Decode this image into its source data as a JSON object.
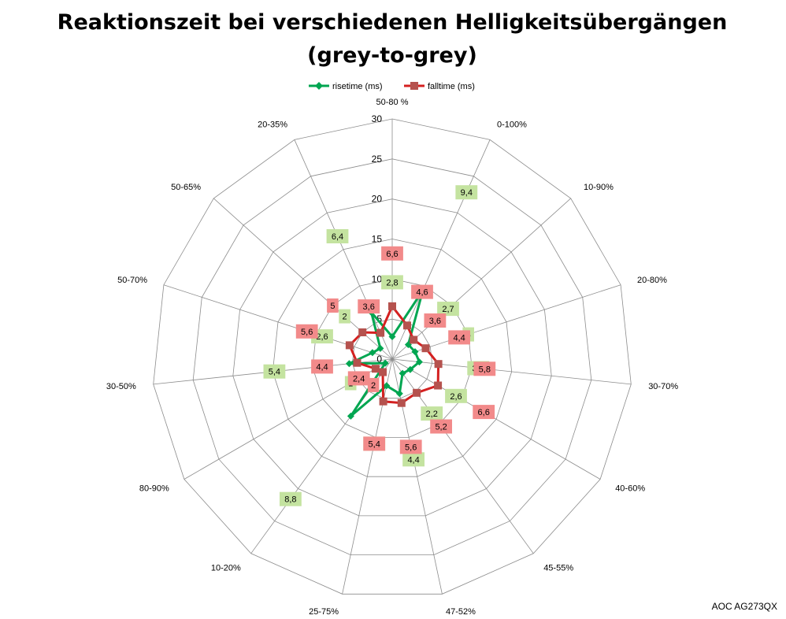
{
  "chart_data": {
    "type": "radar",
    "title_lines": [
      "Reaktionszeit bei verschiedenen Helligkeitsübergängen",
      "(grey-to-grey)"
    ],
    "categories": [
      "50-80 %",
      "0-100%",
      "10-90%",
      "20-80%",
      "30-70%",
      "40-60%",
      "45-55%",
      "47-52%",
      "25-75%",
      "10-20%",
      "80-90%",
      "30-50%",
      "50-70%",
      "50-65%",
      "20-35%"
    ],
    "axis": {
      "min": 0,
      "max": 30,
      "step": 5,
      "ticks": [
        "0",
        "5",
        "10",
        "15",
        "20",
        "25",
        "30"
      ]
    },
    "grid": true,
    "legend_position": "top",
    "series": [
      {
        "name": "risetime (ms)",
        "color": "#00a651",
        "marker": "diamond",
        "label_bg": "#c4e3a0",
        "values": [
          2.8,
          9.4,
          2.7,
          3,
          3.4,
          2.6,
          2.2,
          4.4,
          3.4,
          8.8,
          1,
          5.4,
          2.6,
          2,
          6.4
        ],
        "labels": [
          "2,8",
          "9,4",
          "2,7",
          "3",
          "3,4",
          "2,6",
          "2,2",
          "4,4",
          "3,4",
          "8,8",
          "1",
          "5,4",
          "2,6",
          "2",
          "6,4"
        ]
      },
      {
        "name": "falltime (ms)",
        "color": "#d42020",
        "marker": "square",
        "label_bg": "#f28a8a",
        "values": [
          6.6,
          4.6,
          3.6,
          4.4,
          5.8,
          6.6,
          5.2,
          5.6,
          5.4,
          2,
          2.4,
          4.4,
          5.6,
          5,
          3.6
        ],
        "labels": [
          "6,6",
          "4,6",
          "3,6",
          "4,4",
          "5,8",
          "6,6",
          "5,2",
          "5,6",
          "5,4",
          "2",
          "2,4",
          "4,4",
          "5,6",
          "5",
          "3,6"
        ]
      }
    ]
  },
  "footer_text": "AOC AG273QX"
}
